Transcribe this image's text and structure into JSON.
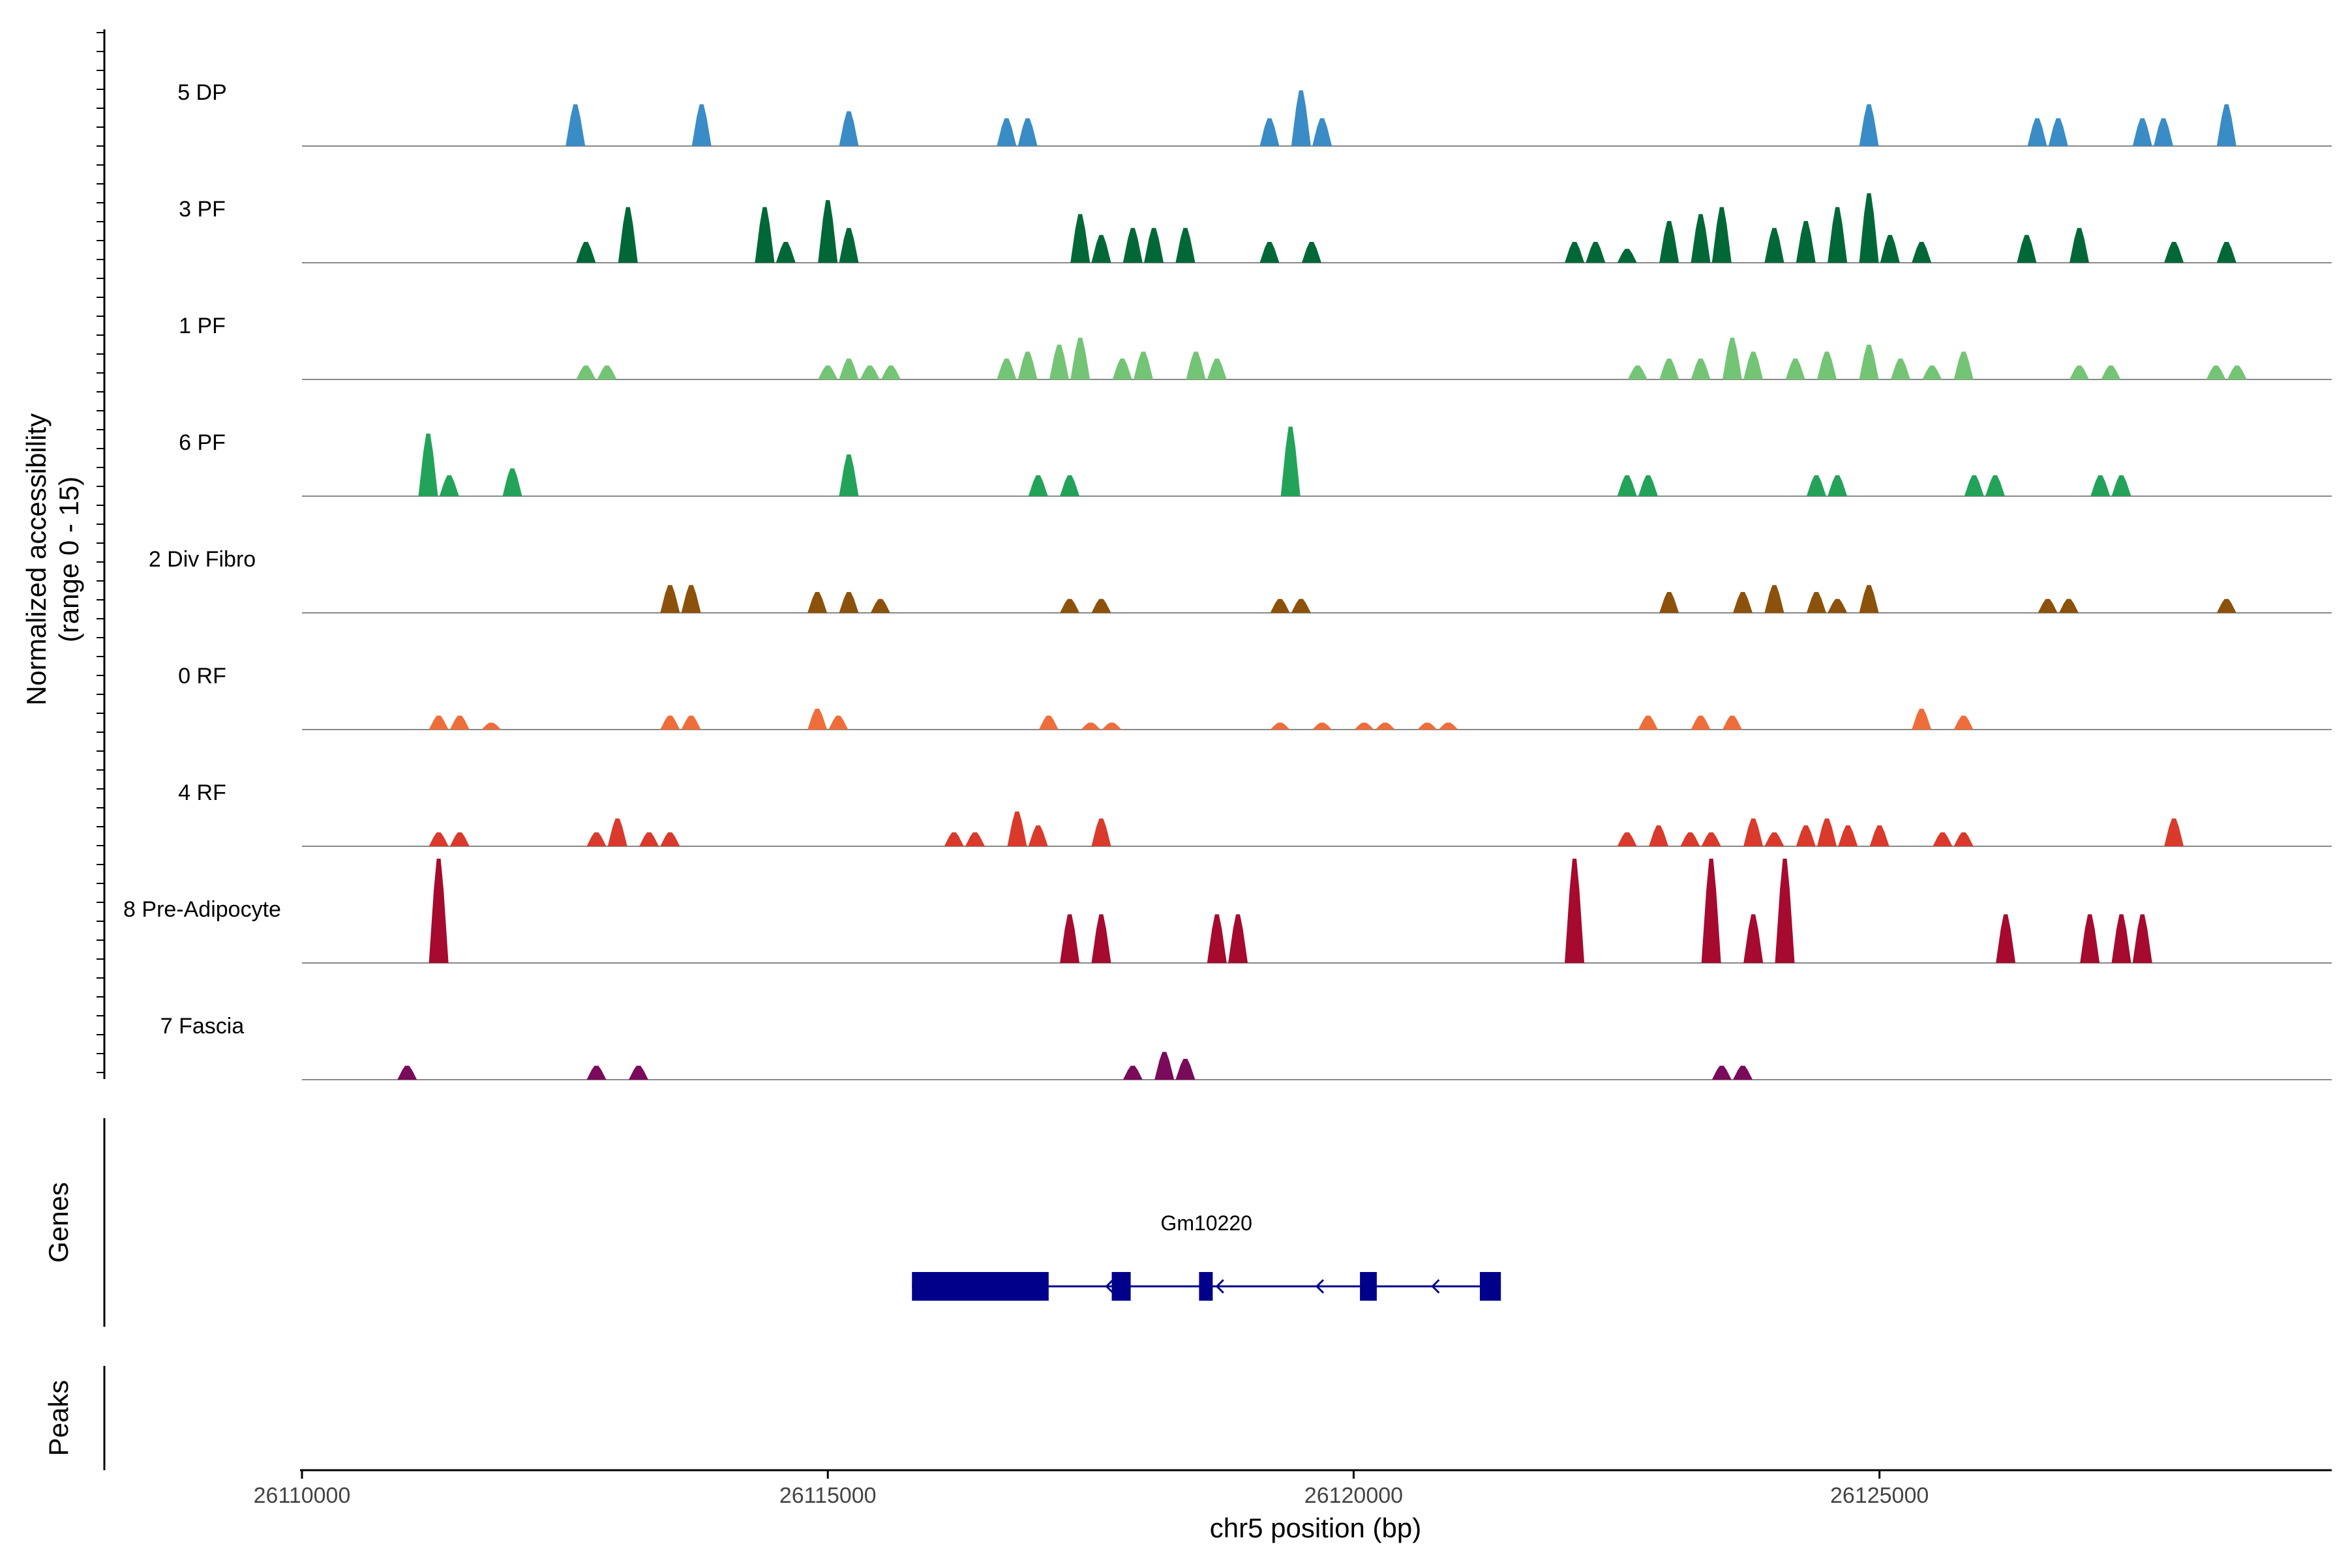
{
  "chart_data": {
    "type": "area",
    "title": "",
    "ylabel_line1": "Normalized accessibility",
    "ylabel_line2": "(range 0 - 15)",
    "xlabel": "chr5 position (bp)",
    "xlim": [
      26110000,
      26129300
    ],
    "ylim": [
      0,
      15
    ],
    "xticks": [
      26110000,
      26115000,
      26120000,
      26125000
    ],
    "xtick_labels": [
      "26110000",
      "26115000",
      "26120000",
      "26125000"
    ],
    "genes_label": "Genes",
    "peaks_label": "Peaks",
    "gene": {
      "name": "Gm10220",
      "strand": "-",
      "start": 26115800,
      "end": 26121400,
      "color": "#00008b",
      "exons": [
        [
          26115800,
          26117100
        ],
        [
          26117700,
          26117880
        ],
        [
          26118530,
          26118660
        ],
        [
          26120060,
          26120220
        ],
        [
          26121200,
          26121400
        ]
      ],
      "arrows": [
        26117650,
        26118700,
        26119650,
        26120750
      ]
    },
    "series": [
      {
        "name": "5 DP",
        "color": "#3a8cc6",
        "peaks": [
          [
            26112600,
            6
          ],
          [
            26113800,
            6
          ],
          [
            26115200,
            5
          ],
          [
            26116700,
            4
          ],
          [
            26116900,
            4
          ],
          [
            26119200,
            4
          ],
          [
            26119500,
            8
          ],
          [
            26119700,
            4
          ],
          [
            26124900,
            6
          ],
          [
            26126500,
            4
          ],
          [
            26126700,
            4
          ],
          [
            26127500,
            4
          ],
          [
            26127700,
            4
          ],
          [
            26128300,
            6
          ]
        ]
      },
      {
        "name": "3 PF",
        "color": "#006837",
        "peaks": [
          [
            26112700,
            3
          ],
          [
            26113100,
            8
          ],
          [
            26114400,
            8
          ],
          [
            26114600,
            3
          ],
          [
            26115000,
            9
          ],
          [
            26115200,
            5
          ],
          [
            26117400,
            7
          ],
          [
            26117600,
            4
          ],
          [
            26117900,
            5
          ],
          [
            26118100,
            5
          ],
          [
            26118400,
            5
          ],
          [
            26119200,
            3
          ],
          [
            26119600,
            3
          ],
          [
            26122100,
            3
          ],
          [
            26122300,
            3
          ],
          [
            26122600,
            2
          ],
          [
            26123000,
            6
          ],
          [
            26123300,
            7
          ],
          [
            26123500,
            8
          ],
          [
            26124000,
            5
          ],
          [
            26124300,
            6
          ],
          [
            26124600,
            8
          ],
          [
            26124900,
            10
          ],
          [
            26125100,
            4
          ],
          [
            26125400,
            3
          ],
          [
            26126400,
            4
          ],
          [
            26126900,
            5
          ],
          [
            26127800,
            3
          ],
          [
            26128300,
            3
          ]
        ]
      },
      {
        "name": "1 PF",
        "color": "#74c476",
        "peaks": [
          [
            26112700,
            2
          ],
          [
            26112900,
            2
          ],
          [
            26115000,
            2
          ],
          [
            26115200,
            3
          ],
          [
            26115400,
            2
          ],
          [
            26115600,
            2
          ],
          [
            26116700,
            3
          ],
          [
            26116900,
            4
          ],
          [
            26117200,
            5
          ],
          [
            26117400,
            6
          ],
          [
            26117800,
            3
          ],
          [
            26118000,
            4
          ],
          [
            26118500,
            4
          ],
          [
            26118700,
            3
          ],
          [
            26122700,
            2
          ],
          [
            26123000,
            3
          ],
          [
            26123300,
            3
          ],
          [
            26123600,
            6
          ],
          [
            26123800,
            4
          ],
          [
            26124200,
            3
          ],
          [
            26124500,
            4
          ],
          [
            26124900,
            5
          ],
          [
            26125200,
            3
          ],
          [
            26125500,
            2
          ],
          [
            26125800,
            4
          ],
          [
            26126900,
            2
          ],
          [
            26127200,
            2
          ],
          [
            26128200,
            2
          ],
          [
            26128400,
            2
          ]
        ]
      },
      {
        "name": "6 PF",
        "color": "#23a35a",
        "peaks": [
          [
            26111200,
            9
          ],
          [
            26111400,
            3
          ],
          [
            26112000,
            4
          ],
          [
            26115200,
            6
          ],
          [
            26117000,
            3
          ],
          [
            26117300,
            3
          ],
          [
            26119400,
            10
          ],
          [
            26122600,
            3
          ],
          [
            26122800,
            3
          ],
          [
            26124400,
            3
          ],
          [
            26124600,
            3
          ],
          [
            26125900,
            3
          ],
          [
            26126100,
            3
          ],
          [
            26127100,
            3
          ],
          [
            26127300,
            3
          ]
        ]
      },
      {
        "name": "2 Div Fibro",
        "color": "#8c510a",
        "peaks": [
          [
            26113500,
            4
          ],
          [
            26113700,
            4
          ],
          [
            26114900,
            3
          ],
          [
            26115200,
            3
          ],
          [
            26115500,
            2
          ],
          [
            26117300,
            2
          ],
          [
            26117600,
            2
          ],
          [
            26119300,
            2
          ],
          [
            26119500,
            2
          ],
          [
            26123000,
            3
          ],
          [
            26123700,
            3
          ],
          [
            26124000,
            4
          ],
          [
            26124400,
            3
          ],
          [
            26124600,
            2
          ],
          [
            26124900,
            4
          ],
          [
            26126600,
            2
          ],
          [
            26126800,
            2
          ],
          [
            26128300,
            2
          ]
        ]
      },
      {
        "name": "0 RF",
        "color": "#ef6d3a",
        "peaks": [
          [
            26111300,
            2
          ],
          [
            26111500,
            2
          ],
          [
            26111800,
            1
          ],
          [
            26113500,
            2
          ],
          [
            26113700,
            2
          ],
          [
            26114900,
            3
          ],
          [
            26115100,
            2
          ],
          [
            26117100,
            2
          ],
          [
            26117500,
            1
          ],
          [
            26117700,
            1
          ],
          [
            26119300,
            1
          ],
          [
            26119700,
            1
          ],
          [
            26120100,
            1
          ],
          [
            26120300,
            1
          ],
          [
            26120700,
            1
          ],
          [
            26120900,
            1
          ],
          [
            26122800,
            2
          ],
          [
            26123300,
            2
          ],
          [
            26123600,
            2
          ],
          [
            26125400,
            3
          ],
          [
            26125800,
            2
          ]
        ]
      },
      {
        "name": "4 RF",
        "color": "#d93a2b",
        "peaks": [
          [
            26111300,
            2
          ],
          [
            26111500,
            2
          ],
          [
            26112800,
            2
          ],
          [
            26113000,
            4
          ],
          [
            26113300,
            2
          ],
          [
            26113500,
            2
          ],
          [
            26116200,
            2
          ],
          [
            26116400,
            2
          ],
          [
            26116800,
            5
          ],
          [
            26117000,
            3
          ],
          [
            26117600,
            4
          ],
          [
            26122600,
            2
          ],
          [
            26122900,
            3
          ],
          [
            26123200,
            2
          ],
          [
            26123400,
            2
          ],
          [
            26123800,
            4
          ],
          [
            26124000,
            2
          ],
          [
            26124300,
            3
          ],
          [
            26124500,
            4
          ],
          [
            26124700,
            3
          ],
          [
            26125000,
            3
          ],
          [
            26125600,
            2
          ],
          [
            26125800,
            2
          ],
          [
            26127800,
            4
          ]
        ]
      },
      {
        "name": "8 Pre-Adipocyte",
        "color": "#a60a2e",
        "peaks": [
          [
            26111300,
            15
          ],
          [
            26117300,
            7
          ],
          [
            26117600,
            7
          ],
          [
            26118700,
            7
          ],
          [
            26118900,
            7
          ],
          [
            26122100,
            15
          ],
          [
            26123400,
            15
          ],
          [
            26123800,
            7
          ],
          [
            26124100,
            15
          ],
          [
            26126200,
            7
          ],
          [
            26127000,
            7
          ],
          [
            26127300,
            7
          ],
          [
            26127500,
            7
          ]
        ]
      },
      {
        "name": "7 Fascia",
        "color": "#7a0a5a",
        "peaks": [
          [
            26111000,
            2
          ],
          [
            26112800,
            2
          ],
          [
            26113200,
            2
          ],
          [
            26117900,
            2
          ],
          [
            26118200,
            4
          ],
          [
            26118400,
            3
          ],
          [
            26123500,
            2
          ],
          [
            26123700,
            2
          ]
        ]
      }
    ]
  }
}
